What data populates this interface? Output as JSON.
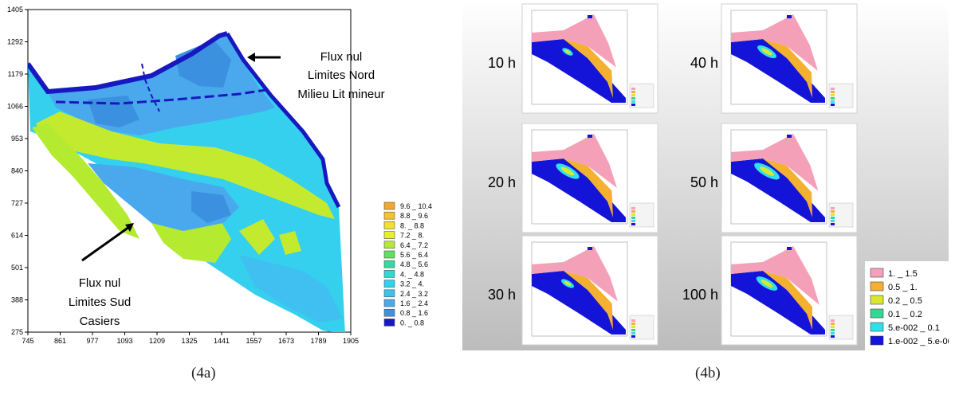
{
  "chart_data": [
    {
      "type": "heatmap",
      "caption": "(4a)",
      "x_ticks": [
        "745",
        "861",
        "977",
        "1093",
        "1209",
        "1325",
        "1441",
        "1557",
        "1673",
        "1789",
        "1905"
      ],
      "y_ticks": [
        "275",
        "388",
        "501",
        "614",
        "727",
        "840",
        "953",
        "1066",
        "1179",
        "1292",
        "1405"
      ],
      "xlim": [
        745,
        1905
      ],
      "ylim": [
        275,
        1405
      ],
      "legend": [
        {
          "label": "9.6 _ 10.4",
          "color": "#f0a830"
        },
        {
          "label": "8.8 _ 9.6",
          "color": "#f4c430"
        },
        {
          "label": "8. _ 8.8",
          "color": "#f0e030"
        },
        {
          "label": "7.2 _ 8.",
          "color": "#e4f030"
        },
        {
          "label": "6.4 _ 7.2",
          "color": "#b4ea30"
        },
        {
          "label": "5.6 _ 6.4",
          "color": "#60e060"
        },
        {
          "label": "4.8 _ 5.6",
          "color": "#30dca0"
        },
        {
          "label": "4. _ 4.8",
          "color": "#30d8d0"
        },
        {
          "label": "3.2 _ 4.",
          "color": "#30d0f0"
        },
        {
          "label": "2.4 _ 3.2",
          "color": "#40c0f0"
        },
        {
          "label": "1.6 _ 2.4",
          "color": "#4ca8ec"
        },
        {
          "label": "0.8 _ 1.6",
          "color": "#3c90e0"
        },
        {
          "label": "0. _ 0.8",
          "color": "#1818c0"
        }
      ],
      "annotations": {
        "north": [
          "Flux nul",
          "Limites Nord",
          "Milieu Lit mineur"
        ],
        "south": [
          "Flux nul",
          "Limites Sud",
          "Casiers"
        ]
      }
    },
    {
      "type": "heatmap",
      "caption": "(4b)",
      "panels": [
        {
          "label": "10 h",
          "pink_extent": 0.55,
          "yellow_band": 0.02,
          "cyan_lobe": 0.05
        },
        {
          "label": "40 h",
          "pink_extent": 0.7,
          "yellow_band": 0.1,
          "cyan_lobe": 0.25
        },
        {
          "label": "20 h",
          "pink_extent": 0.6,
          "yellow_band": 0.05,
          "cyan_lobe": 0.35
        },
        {
          "label": "50 h",
          "pink_extent": 0.72,
          "yellow_band": 0.12,
          "cyan_lobe": 0.4
        },
        {
          "label": "30 h",
          "pink_extent": 0.65,
          "yellow_band": 0.07,
          "cyan_lobe": 0.1
        },
        {
          "label": "100 h",
          "pink_extent": 0.8,
          "yellow_band": 0.2,
          "cyan_lobe": 0.3
        }
      ],
      "legend": [
        {
          "label": "1. _ 1.5",
          "color": "#f4a0b8"
        },
        {
          "label": "0.5 _ 1.",
          "color": "#f4b030"
        },
        {
          "label": "0.2 _ 0.5",
          "color": "#d8e830"
        },
        {
          "label": "0.1 _ 0.2",
          "color": "#30d890"
        },
        {
          "label": "5.e-002 _ 0.1",
          "color": "#30e0e8"
        },
        {
          "label": "1.e-002 _ 5.e-00",
          "color": "#1414d8"
        }
      ]
    }
  ]
}
